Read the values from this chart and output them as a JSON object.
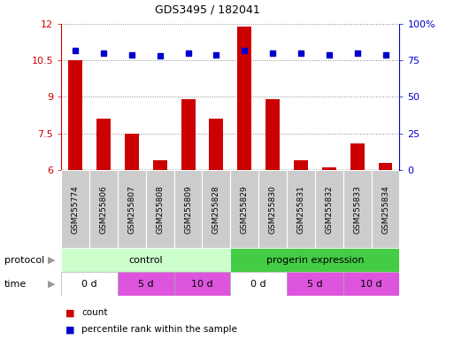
{
  "title": "GDS3495 / 182041",
  "samples": [
    "GSM255774",
    "GSM255806",
    "GSM255807",
    "GSM255808",
    "GSM255809",
    "GSM255828",
    "GSM255829",
    "GSM255830",
    "GSM255831",
    "GSM255832",
    "GSM255833",
    "GSM255834"
  ],
  "bar_values": [
    10.5,
    8.1,
    7.5,
    6.4,
    8.9,
    8.1,
    11.9,
    8.9,
    6.4,
    6.1,
    7.1,
    6.3
  ],
  "percentile_values": [
    82,
    80,
    79,
    78,
    80,
    79,
    82,
    80,
    80,
    79,
    80,
    79
  ],
  "bar_color": "#cc0000",
  "scatter_color": "#0000cc",
  "ylim_left": [
    6,
    12
  ],
  "ylim_right": [
    0,
    100
  ],
  "yticks_left": [
    6,
    7.5,
    9,
    10.5,
    12
  ],
  "yticks_right": [
    0,
    25,
    50,
    75,
    100
  ],
  "control_color_light": "#ccffcc",
  "progerin_color_medium": "#44cc44",
  "time_white": "#ffffff",
  "time_pink": "#dd55dd",
  "legend_count_color": "#cc0000",
  "legend_percentile_color": "#0000cc",
  "dotted_line_color": "#888888",
  "axis_label_color_left": "#cc0000",
  "axis_label_color_right": "#0000cc",
  "background_color": "#ffffff",
  "sample_box_color": "#cccccc",
  "time_labels": [
    "0 d",
    "5 d",
    "10 d",
    "0 d",
    "5 d",
    "10 d"
  ],
  "time_colors": [
    "#ffffff",
    "#dd55dd",
    "#dd55dd",
    "#ffffff",
    "#dd55dd",
    "#dd55dd"
  ],
  "time_sample_counts": [
    2,
    2,
    2,
    2,
    2,
    2
  ]
}
